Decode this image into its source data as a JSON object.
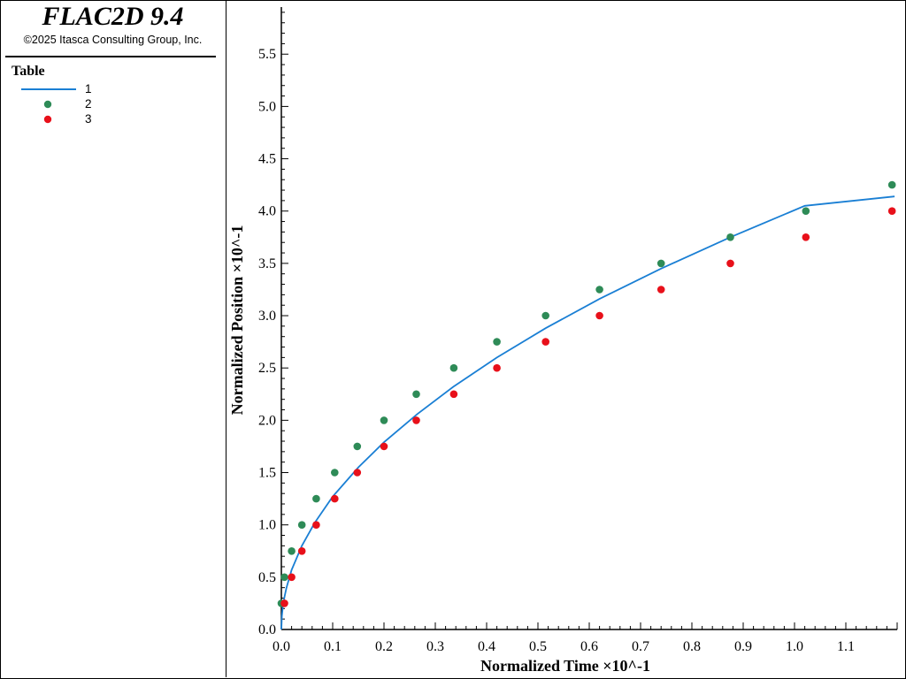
{
  "app": {
    "title": "FLAC2D 9.4",
    "copyright": "©2025 Itasca Consulting Group, Inc."
  },
  "legend": {
    "title": "Table",
    "items": [
      {
        "label": "1",
        "kind": "line",
        "color": "#1a7fd4"
      },
      {
        "label": "2",
        "kind": "dot",
        "color": "#2e8b57"
      },
      {
        "label": "3",
        "kind": "dot",
        "color": "#e8101a"
      }
    ]
  },
  "chart_data": {
    "type": "scatter",
    "title": "",
    "xlabel": "Normalized Time ×10^-1",
    "ylabel": "Normalized Position ×10^-1",
    "xlim": [
      0,
      1.2
    ],
    "ylim": [
      0,
      5.95
    ],
    "xticks": [
      "0.0",
      "0.1",
      "0.2",
      "0.3",
      "0.4",
      "0.5",
      "0.6",
      "0.7",
      "0.8",
      "0.9",
      "1.0",
      "1.1"
    ],
    "yticks": [
      "0.0",
      "0.5",
      "1.0",
      "1.5",
      "2.0",
      "2.5",
      "3.0",
      "3.5",
      "4.0",
      "4.5",
      "5.0",
      "5.5"
    ],
    "grid": false,
    "legend_position": "left-panel",
    "series": [
      {
        "name": "1",
        "kind": "line",
        "color": "#1a7fd4",
        "x": [
          0,
          0.001,
          0.003,
          0.006,
          0.01,
          0.02,
          0.04,
          0.065,
          0.1,
          0.15,
          0.2,
          0.265,
          0.335,
          0.42,
          0.515,
          0.62,
          0.74,
          0.875,
          1.02,
          1.195
        ],
        "y": [
          0,
          0.13,
          0.22,
          0.31,
          0.4,
          0.57,
          0.8,
          1.02,
          1.27,
          1.55,
          1.79,
          2.06,
          2.32,
          2.6,
          2.88,
          3.16,
          3.45,
          3.75,
          4.05,
          4.14
        ]
      },
      {
        "name": "2",
        "kind": "scatter",
        "color": "#2e8b57",
        "x": [
          0.0,
          0.006,
          0.02,
          0.04,
          0.068,
          0.104,
          0.148,
          0.2,
          0.263,
          0.336,
          0.42,
          0.515,
          0.62,
          0.74,
          0.875,
          1.022,
          1.19
        ],
        "y": [
          0.25,
          0.5,
          0.75,
          1.0,
          1.25,
          1.5,
          1.75,
          2.0,
          2.25,
          2.5,
          2.75,
          3.0,
          3.25,
          3.5,
          3.75,
          4.0,
          4.25
        ]
      },
      {
        "name": "3",
        "kind": "scatter",
        "color": "#e8101a",
        "x": [
          0.006,
          0.02,
          0.04,
          0.068,
          0.104,
          0.148,
          0.2,
          0.263,
          0.336,
          0.42,
          0.515,
          0.62,
          0.74,
          0.875,
          1.022,
          1.19
        ],
        "y": [
          0.25,
          0.5,
          0.75,
          1.0,
          1.25,
          1.5,
          1.75,
          2.0,
          2.25,
          2.5,
          2.75,
          3.0,
          3.25,
          3.5,
          3.75,
          4.0
        ]
      }
    ]
  }
}
